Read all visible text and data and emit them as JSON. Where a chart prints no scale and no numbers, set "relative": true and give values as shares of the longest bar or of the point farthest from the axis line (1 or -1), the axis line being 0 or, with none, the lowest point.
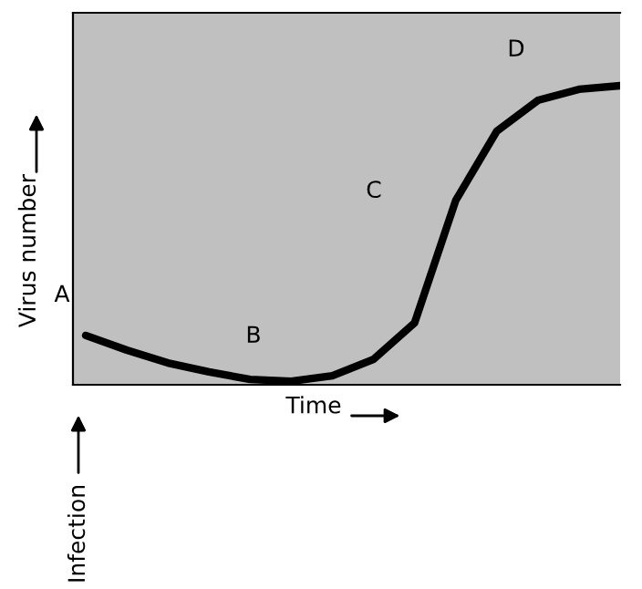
{
  "chart_data": {
    "type": "line",
    "relative": true,
    "xlabel": "Time",
    "ylabel": "Virus number",
    "categories": [
      null,
      null,
      null,
      null,
      null,
      null,
      null,
      null,
      null,
      null,
      null,
      null,
      null,
      null
    ],
    "series": [
      {
        "color": "#000000",
        "values": [
          0.165,
          0.116,
          0.073,
          0.043,
          0.018,
          0.012,
          0.03,
          0.085,
          0.207,
          0.616,
          0.848,
          0.951,
          0.988,
          1.0
        ]
      }
    ],
    "annotations": [
      "A",
      "B",
      "C",
      "D",
      "Infection"
    ],
    "legend": false,
    "marker": "none",
    "line_style": "solid"
  }
}
